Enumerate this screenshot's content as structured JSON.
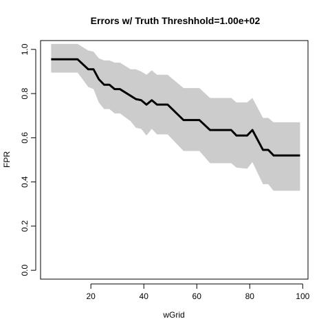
{
  "chart_data": {
    "type": "line",
    "title": "Errors w/ Truth Threshhold=1.00e+02",
    "xlabel": "wGrid",
    "ylabel": "FPR",
    "xlim": [
      1,
      102
    ],
    "ylim": [
      -0.04,
      1.04
    ],
    "xticks": [
      20,
      40,
      60,
      80,
      100
    ],
    "xtick_labels": [
      "20",
      "40",
      "60",
      "80",
      "100"
    ],
    "yticks": [
      0.0,
      0.2,
      0.4,
      0.6,
      0.8,
      1.0
    ],
    "ytick_labels": [
      "0.0",
      "0.2",
      "0.4",
      "0.6",
      "0.8",
      "1.0"
    ],
    "grid": false,
    "band_color": "#cccccc",
    "line_color": "#000000",
    "series": [
      {
        "x": [
          5,
          15,
          19,
          21,
          23,
          25,
          27,
          29,
          31,
          35,
          37,
          39,
          41,
          43,
          45,
          49,
          55,
          61,
          65,
          73,
          75,
          79,
          81,
          85,
          87,
          89,
          99
        ],
        "values": [
          0.955,
          0.955,
          0.91,
          0.91,
          0.865,
          0.84,
          0.84,
          0.82,
          0.82,
          0.79,
          0.775,
          0.77,
          0.75,
          0.77,
          0.75,
          0.75,
          0.68,
          0.68,
          0.635,
          0.635,
          0.61,
          0.61,
          0.635,
          0.545,
          0.545,
          0.52,
          0.52
        ],
        "lower": [
          0.895,
          0.895,
          0.83,
          0.82,
          0.76,
          0.73,
          0.73,
          0.71,
          0.71,
          0.675,
          0.645,
          0.64,
          0.61,
          0.64,
          0.615,
          0.615,
          0.54,
          0.54,
          0.485,
          0.485,
          0.465,
          0.46,
          0.49,
          0.39,
          0.39,
          0.36,
          0.36
        ],
        "upper": [
          1.025,
          1.025,
          0.995,
          0.99,
          0.96,
          0.95,
          0.95,
          0.94,
          0.94,
          0.91,
          0.91,
          0.9,
          0.885,
          0.905,
          0.885,
          0.885,
          0.825,
          0.825,
          0.78,
          0.78,
          0.76,
          0.76,
          0.78,
          0.69,
          0.69,
          0.67,
          0.67
        ]
      }
    ]
  }
}
